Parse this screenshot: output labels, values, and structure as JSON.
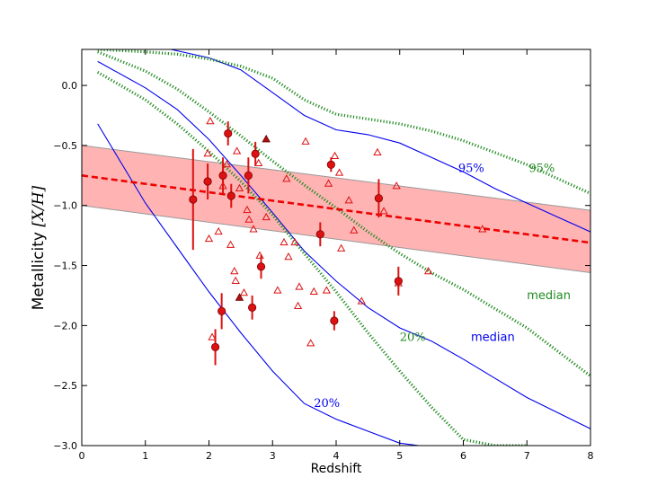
{
  "chart_data": {
    "type": "scatter",
    "title": "",
    "xlabel": "Redshift",
    "ylabel": "Metallicity [X/H]",
    "xlim": [
      0,
      8
    ],
    "ylim": [
      -3.0,
      0.3
    ],
    "xticks": [
      0,
      1,
      2,
      3,
      4,
      5,
      6,
      7,
      8
    ],
    "yticks": [
      -3.0,
      -2.5,
      -2.0,
      -1.5,
      -1.0,
      -0.5,
      0.0
    ],
    "xtick_labels": [
      "0",
      "1",
      "2",
      "3",
      "4",
      "5",
      "6",
      "7",
      "8"
    ],
    "ytick_labels": [
      "−3.0",
      "−2.5",
      "−2.0",
      "−1.5",
      "−1.0",
      "−0.5",
      "0.0"
    ],
    "fit": {
      "name": "linear fit",
      "x": [
        0,
        8
      ],
      "y": [
        -0.75,
        -1.31
      ],
      "band_upper": [
        -0.5,
        -1.04
      ],
      "band_lower": [
        -1.0,
        -1.56
      ],
      "color": "#ee0000",
      "band_color": "#ff9999"
    },
    "detections": {
      "name": "detections",
      "color": "#dd1111",
      "points": [
        {
          "x": 1.75,
          "y": -0.95,
          "yerr": 0.42
        },
        {
          "x": 1.98,
          "y": -0.8,
          "yerr": 0.15
        },
        {
          "x": 2.1,
          "y": -2.18,
          "yerr": 0.15
        },
        {
          "x": 2.2,
          "y": -1.88,
          "yerr": 0.15
        },
        {
          "x": 2.22,
          "y": -0.75,
          "yerr": 0.15
        },
        {
          "x": 2.3,
          "y": -0.4,
          "yerr": 0.1
        },
        {
          "x": 2.35,
          "y": -0.92,
          "yerr": 0.1
        },
        {
          "x": 2.62,
          "y": -0.75,
          "yerr": 0.15
        },
        {
          "x": 2.68,
          "y": -1.85,
          "yerr": 0.1
        },
        {
          "x": 2.73,
          "y": -0.57,
          "yerr": 0.1
        },
        {
          "x": 2.82,
          "y": -1.51,
          "yerr": 0.1
        },
        {
          "x": 3.75,
          "y": -1.24,
          "yerr": 0.1
        },
        {
          "x": 3.92,
          "y": -0.66,
          "yerr": 0.06
        },
        {
          "x": 3.97,
          "y": -1.96,
          "yerr": 0.08
        },
        {
          "x": 4.67,
          "y": -0.94,
          "yerr": 0.16
        },
        {
          "x": 4.98,
          "y": -1.63,
          "yerr": 0.12
        }
      ]
    },
    "upper_limits": {
      "name": "limits (filled triangles)",
      "points": [
        {
          "x": 2.48,
          "y": -1.77
        },
        {
          "x": 2.9,
          "y": -0.45
        }
      ]
    },
    "lower_limits": {
      "name": "limits (open triangles)",
      "points": [
        {
          "x": 2.02,
          "y": -0.3
        },
        {
          "x": 1.98,
          "y": -0.57
        },
        {
          "x": 2.0,
          "y": -1.28
        },
        {
          "x": 2.05,
          "y": -2.1
        },
        {
          "x": 2.15,
          "y": -1.22
        },
        {
          "x": 2.22,
          "y": -0.84
        },
        {
          "x": 2.28,
          "y": -0.66
        },
        {
          "x": 2.34,
          "y": -1.33
        },
        {
          "x": 2.4,
          "y": -1.55
        },
        {
          "x": 2.42,
          "y": -1.63
        },
        {
          "x": 2.44,
          "y": -0.55
        },
        {
          "x": 2.48,
          "y": -0.86
        },
        {
          "x": 2.55,
          "y": -1.73
        },
        {
          "x": 2.6,
          "y": -1.04
        },
        {
          "x": 2.63,
          "y": -1.12
        },
        {
          "x": 2.7,
          "y": -1.2
        },
        {
          "x": 2.78,
          "y": -0.65
        },
        {
          "x": 2.8,
          "y": -1.42
        },
        {
          "x": 2.9,
          "y": -1.1
        },
        {
          "x": 3.08,
          "y": -1.71
        },
        {
          "x": 3.22,
          "y": -0.78
        },
        {
          "x": 3.18,
          "y": -1.31
        },
        {
          "x": 3.25,
          "y": -1.43
        },
        {
          "x": 3.35,
          "y": -1.31
        },
        {
          "x": 3.42,
          "y": -1.68
        },
        {
          "x": 3.4,
          "y": -1.84
        },
        {
          "x": 3.52,
          "y": -0.47
        },
        {
          "x": 3.6,
          "y": -2.15
        },
        {
          "x": 3.65,
          "y": -1.72
        },
        {
          "x": 3.85,
          "y": -1.71
        },
        {
          "x": 3.88,
          "y": -0.82
        },
        {
          "x": 3.98,
          "y": -0.59
        },
        {
          "x": 4.05,
          "y": -0.73
        },
        {
          "x": 4.08,
          "y": -1.36
        },
        {
          "x": 4.2,
          "y": -0.96
        },
        {
          "x": 4.28,
          "y": -1.21
        },
        {
          "x": 4.4,
          "y": -1.8
        },
        {
          "x": 4.65,
          "y": -0.56
        },
        {
          "x": 4.75,
          "y": -1.05
        },
        {
          "x": 4.95,
          "y": -0.84
        },
        {
          "x": 4.98,
          "y": -1.65
        },
        {
          "x": 5.45,
          "y": -1.55
        },
        {
          "x": 6.3,
          "y": -1.2
        }
      ]
    },
    "model_curves": [
      {
        "name": "95% (blue)",
        "color": "#0000ee",
        "style": "solid",
        "x": [
          1.4,
          2.0,
          2.5,
          3.0,
          3.5,
          4.0,
          4.5,
          5.0,
          5.5,
          6.0,
          6.5,
          7.0,
          7.5,
          8.0
        ],
        "y": [
          0.3,
          0.23,
          0.13,
          -0.06,
          -0.25,
          -0.37,
          -0.41,
          -0.48,
          -0.6,
          -0.72,
          -0.86,
          -0.98,
          -1.1,
          -1.22
        ]
      },
      {
        "name": "median (blue)",
        "color": "#0000ee",
        "style": "solid",
        "x": [
          0.25,
          1.0,
          1.5,
          2.0,
          2.5,
          3.0,
          3.5,
          4.0,
          4.5,
          5.0,
          5.5,
          6.0,
          6.5,
          7.0,
          7.5,
          8.0
        ],
        "y": [
          0.2,
          -0.02,
          -0.2,
          -0.45,
          -0.75,
          -1.06,
          -1.38,
          -1.63,
          -1.85,
          -2.02,
          -2.13,
          -2.28,
          -2.44,
          -2.6,
          -2.73,
          -2.86
        ]
      },
      {
        "name": "20% (blue)",
        "color": "#0000ee",
        "style": "solid",
        "x": [
          0.25,
          1.0,
          1.5,
          2.0,
          2.5,
          3.0,
          3.5,
          4.0,
          4.5,
          5.0,
          5.3
        ],
        "y": [
          -0.32,
          -0.98,
          -1.35,
          -1.72,
          -2.06,
          -2.38,
          -2.65,
          -2.78,
          -2.88,
          -2.98,
          -3.0
        ]
      },
      {
        "name": "95% (green)",
        "color": "#228B22",
        "style": "dotted",
        "x": [
          0.25,
          1.0,
          1.5,
          2.0,
          2.5,
          3.0,
          3.5,
          4.0,
          4.5,
          5.0,
          5.5,
          6.0,
          6.5,
          7.0,
          7.5,
          8.0
        ],
        "y": [
          0.3,
          0.28,
          0.26,
          0.22,
          0.16,
          0.06,
          -0.12,
          -0.24,
          -0.28,
          -0.32,
          -0.38,
          -0.46,
          -0.56,
          -0.66,
          -0.78,
          -0.9
        ]
      },
      {
        "name": "median (green)",
        "color": "#228B22",
        "style": "dotted",
        "x": [
          0.25,
          1.0,
          1.5,
          2.0,
          2.5,
          3.0,
          3.5,
          4.0,
          4.5,
          5.0,
          5.5,
          6.0,
          6.5,
          7.0,
          7.5,
          8.0
        ],
        "y": [
          0.28,
          0.12,
          -0.03,
          -0.22,
          -0.42,
          -0.63,
          -0.83,
          -1.02,
          -1.22,
          -1.4,
          -1.56,
          -1.7,
          -1.86,
          -2.02,
          -2.22,
          -2.42
        ]
      },
      {
        "name": "20% (green)",
        "color": "#228B22",
        "style": "dotted",
        "x": [
          0.25,
          1.0,
          1.5,
          2.0,
          2.5,
          3.0,
          3.5,
          4.0,
          4.5,
          5.0,
          5.5,
          6.0,
          6.5,
          7.0
        ],
        "y": [
          0.11,
          -0.12,
          -0.32,
          -0.55,
          -0.8,
          -1.08,
          -1.4,
          -1.72,
          -2.06,
          -2.38,
          -2.68,
          -2.95,
          -3.0,
          -3.0
        ]
      }
    ],
    "annotations": [
      {
        "text": "95%",
        "x": 5.92,
        "y": -0.72,
        "color": "#0000ee",
        "font": "serif"
      },
      {
        "text": "95%",
        "x": 7.03,
        "y": -0.72,
        "color": "#228B22",
        "font": "serif"
      },
      {
        "text": "median",
        "x": 7.0,
        "y": -1.78,
        "color": "#228B22",
        "font": "sans"
      },
      {
        "text": "median",
        "x": 6.12,
        "y": -2.13,
        "color": "#0000ee",
        "font": "sans"
      },
      {
        "text": "20%",
        "x": 5.0,
        "y": -2.13,
        "color": "#228B22",
        "font": "serif"
      },
      {
        "text": "20%",
        "x": 3.65,
        "y": -2.68,
        "color": "#0000ee",
        "font": "serif"
      }
    ]
  }
}
